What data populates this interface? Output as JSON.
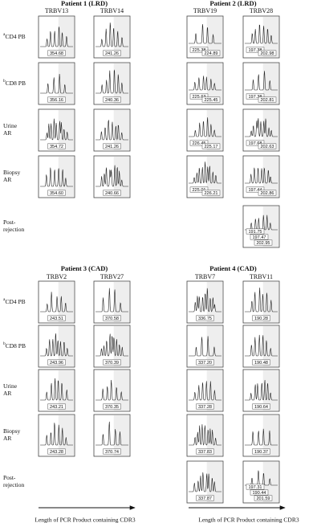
{
  "sections": [
    {
      "row_labels": [
        {
          "sup": "a",
          "lines": [
            "CD4 PB"
          ]
        },
        {
          "sup": "b",
          "lines": [
            "CD8 PB"
          ]
        },
        {
          "lines": [
            "Urine",
            "AR"
          ]
        },
        {
          "lines": [
            "Biopsy",
            "AR"
          ]
        },
        {
          "lines": [
            "Post-",
            "rejection"
          ]
        }
      ],
      "patients": [
        {
          "title": "Patient 1 (LRD)",
          "columns": [
            {
              "gene": "TRBV13",
              "panels": [
                [
                  "354.68"
                ],
                [
                  "356.16"
                ],
                [
                  "354.72"
                ],
                [
                  "354.60"
                ],
                null
              ]
            },
            {
              "gene": "TRBV14",
              "panels": [
                [
                  "241.26"
                ],
                [
                  "240.36"
                ],
                [
                  "241.26"
                ],
                [
                  "240.66"
                ],
                null
              ]
            }
          ]
        },
        {
          "title": "Patient 2 (LRD)",
          "columns": [
            {
              "gene": "TRBV19",
              "panels": [
                [
                  "225.38",
                  "224.89"
                ],
                [
                  "225.63",
                  "225.45"
                ],
                [
                  "226.45",
                  "225.17"
                ],
                [
                  "225.01",
                  "226.21"
                ],
                null
              ]
            },
            {
              "gene": "TRBV28",
              "panels": [
                [
                  "197.38",
                  "202.98"
                ],
                [
                  "197.38",
                  "202.81"
                ],
                [
                  "197.68",
                  "202.63"
                ],
                [
                  "197.44",
                  "202.86"
                ],
                [
                  "191.75",
                  "197.47",
                  "202.95"
                ]
              ]
            }
          ]
        }
      ]
    },
    {
      "row_labels": [
        {
          "sup": "a",
          "lines": [
            "CD4 PB"
          ]
        },
        {
          "sup": "b",
          "lines": [
            "CD8 PB"
          ]
        },
        {
          "lines": [
            "Urine",
            "AR"
          ]
        },
        {
          "lines": [
            "Biopsy",
            "AR"
          ]
        },
        {
          "lines": [
            "Post-",
            "rejection"
          ]
        }
      ],
      "patients": [
        {
          "title": "Patient  3 (CAD)",
          "columns": [
            {
              "gene": "TRBV2",
              "panels": [
                [
                  "243.51"
                ],
                [
                  "243.96"
                ],
                [
                  "243.21"
                ],
                [
                  "243.28"
                ],
                null
              ]
            },
            {
              "gene": "TRBV27",
              "panels": [
                [
                  "370.58"
                ],
                [
                  "370.39"
                ],
                [
                  "370.35"
                ],
                [
                  "370.74"
                ],
                null
              ]
            }
          ]
        },
        {
          "title": "Patient  4 (CAD)",
          "columns": [
            {
              "gene": "TRBV7",
              "panels": [
                [
                  "336.75"
                ],
                [
                  "337.20"
                ],
                [
                  "337.28"
                ],
                [
                  "337.83"
                ],
                [
                  "337.87"
                ]
              ]
            },
            {
              "gene": "TRBV11",
              "panels": [
                [
                  "190.28"
                ],
                [
                  "190.48"
                ],
                [
                  "190.64"
                ],
                [
                  "190.37"
                ],
                [
                  "197.31",
                  "190.44",
                  "201.59"
                ]
              ]
            }
          ]
        }
      ]
    }
  ],
  "axis_labels": [
    "Length of PCR Product containing CDR3",
    "Length of PCR Product containing CDR3"
  ]
}
